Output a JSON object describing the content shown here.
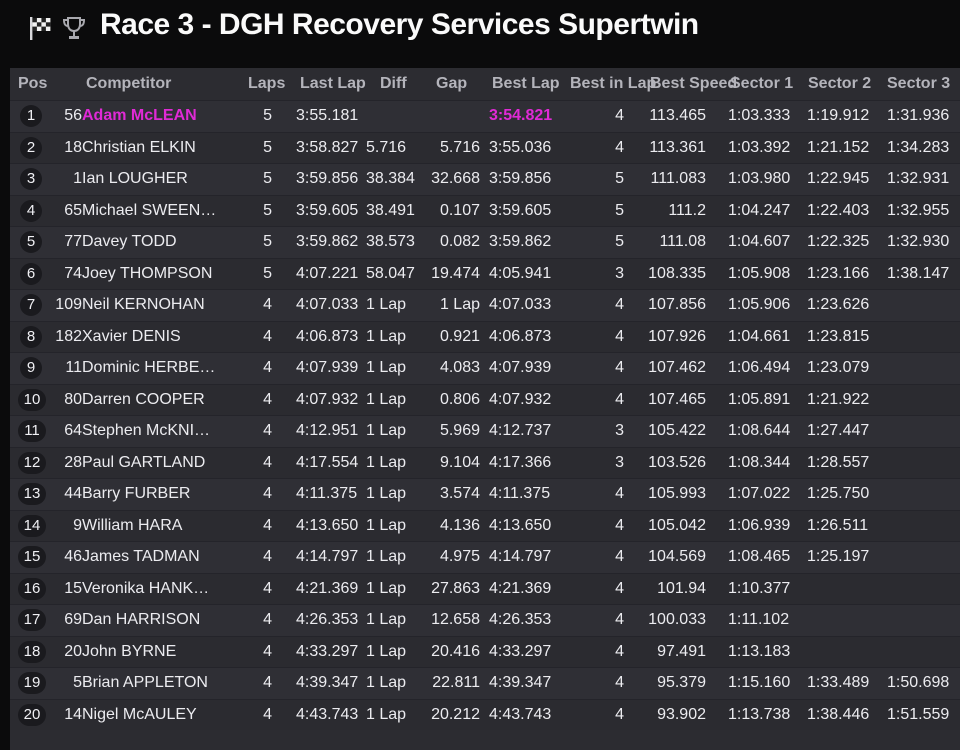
{
  "title": "Race 3 - DGH Recovery Services Supertwin",
  "icons": {
    "flag": "checkered-flag-icon",
    "trophy": "trophy-icon"
  },
  "colors": {
    "highlight": "#e02ad6",
    "background": "#0b0b0c",
    "panel": "#2c2c31"
  },
  "headers": {
    "pos": "Pos",
    "competitor": "Competitor",
    "laps": "Laps",
    "last_lap": "Last Lap",
    "diff": "Diff",
    "gap": "Gap",
    "best_lap": "Best Lap",
    "best_in_lap": "Best in Lap",
    "best_speed": "Best Speed",
    "sector1": "Sector 1",
    "sector2": "Sector 2",
    "sector3": "Sector 3"
  },
  "rows": [
    {
      "pos": "1",
      "num": "56",
      "name": "Adam McLEAN",
      "laps": "5",
      "last": "3:55.181",
      "diff": "",
      "gap": "",
      "best": "3:54.821",
      "bil": "4",
      "speed": "113.465",
      "s1": "1:03.333",
      "s2": "1:19.912",
      "s3": "1:31.936"
    },
    {
      "pos": "2",
      "num": "18",
      "name": "Christian ELKIN",
      "laps": "5",
      "last": "3:58.827",
      "diff": "5.716",
      "gap": "5.716",
      "best": "3:55.036",
      "bil": "4",
      "speed": "113.361",
      "s1": "1:03.392",
      "s2": "1:21.152",
      "s3": "1:34.283"
    },
    {
      "pos": "3",
      "num": "1",
      "name": "Ian LOUGHER",
      "laps": "5",
      "last": "3:59.856",
      "diff": "38.384",
      "gap": "32.668",
      "best": "3:59.856",
      "bil": "5",
      "speed": "111.083",
      "s1": "1:03.980",
      "s2": "1:22.945",
      "s3": "1:32.931"
    },
    {
      "pos": "4",
      "num": "65",
      "name": "Michael SWEEN…",
      "laps": "5",
      "last": "3:59.605",
      "diff": "38.491",
      "gap": "0.107",
      "best": "3:59.605",
      "bil": "5",
      "speed": "111.2",
      "s1": "1:04.247",
      "s2": "1:22.403",
      "s3": "1:32.955"
    },
    {
      "pos": "5",
      "num": "77",
      "name": "Davey TODD",
      "laps": "5",
      "last": "3:59.862",
      "diff": "38.573",
      "gap": "0.082",
      "best": "3:59.862",
      "bil": "5",
      "speed": "111.08",
      "s1": "1:04.607",
      "s2": "1:22.325",
      "s3": "1:32.930"
    },
    {
      "pos": "6",
      "num": "74",
      "name": "Joey THOMPSON",
      "laps": "5",
      "last": "4:07.221",
      "diff": "58.047",
      "gap": "19.474",
      "best": "4:05.941",
      "bil": "3",
      "speed": "108.335",
      "s1": "1:05.908",
      "s2": "1:23.166",
      "s3": "1:38.147"
    },
    {
      "pos": "7",
      "num": "109",
      "name": "Neil KERNOHAN",
      "laps": "4",
      "last": "4:07.033",
      "diff": "1 Lap",
      "gap": "1 Lap",
      "best": "4:07.033",
      "bil": "4",
      "speed": "107.856",
      "s1": "1:05.906",
      "s2": "1:23.626",
      "s3": ""
    },
    {
      "pos": "8",
      "num": "182",
      "name": "Xavier DENIS",
      "laps": "4",
      "last": "4:06.873",
      "diff": "1 Lap",
      "gap": "0.921",
      "best": "4:06.873",
      "bil": "4",
      "speed": "107.926",
      "s1": "1:04.661",
      "s2": "1:23.815",
      "s3": ""
    },
    {
      "pos": "9",
      "num": "11",
      "name": "Dominic HERBE…",
      "laps": "4",
      "last": "4:07.939",
      "diff": "1 Lap",
      "gap": "4.083",
      "best": "4:07.939",
      "bil": "4",
      "speed": "107.462",
      "s1": "1:06.494",
      "s2": "1:23.079",
      "s3": ""
    },
    {
      "pos": "10",
      "num": "80",
      "name": "Darren COOPER",
      "laps": "4",
      "last": "4:07.932",
      "diff": "1 Lap",
      "gap": "0.806",
      "best": "4:07.932",
      "bil": "4",
      "speed": "107.465",
      "s1": "1:05.891",
      "s2": "1:21.922",
      "s3": ""
    },
    {
      "pos": "11",
      "num": "64",
      "name": "Stephen McKNI…",
      "laps": "4",
      "last": "4:12.951",
      "diff": "1 Lap",
      "gap": "5.969",
      "best": "4:12.737",
      "bil": "3",
      "speed": "105.422",
      "s1": "1:08.644",
      "s2": "1:27.447",
      "s3": ""
    },
    {
      "pos": "12",
      "num": "28",
      "name": "Paul GARTLAND",
      "laps": "4",
      "last": "4:17.554",
      "diff": "1 Lap",
      "gap": "9.104",
      "best": "4:17.366",
      "bil": "3",
      "speed": "103.526",
      "s1": "1:08.344",
      "s2": "1:28.557",
      "s3": ""
    },
    {
      "pos": "13",
      "num": "44",
      "name": "Barry FURBER",
      "laps": "4",
      "last": "4:11.375",
      "diff": "1 Lap",
      "gap": "3.574",
      "best": "4:11.375",
      "bil": "4",
      "speed": "105.993",
      "s1": "1:07.022",
      "s2": "1:25.750",
      "s3": ""
    },
    {
      "pos": "14",
      "num": "9",
      "name": "William HARA",
      "laps": "4",
      "last": "4:13.650",
      "diff": "1 Lap",
      "gap": "4.136",
      "best": "4:13.650",
      "bil": "4",
      "speed": "105.042",
      "s1": "1:06.939",
      "s2": "1:26.511",
      "s3": ""
    },
    {
      "pos": "15",
      "num": "46",
      "name": "James TADMAN",
      "laps": "4",
      "last": "4:14.797",
      "diff": "1 Lap",
      "gap": "4.975",
      "best": "4:14.797",
      "bil": "4",
      "speed": "104.569",
      "s1": "1:08.465",
      "s2": "1:25.197",
      "s3": ""
    },
    {
      "pos": "16",
      "num": "15",
      "name": "Veronika HANK…",
      "laps": "4",
      "last": "4:21.369",
      "diff": "1 Lap",
      "gap": "27.863",
      "best": "4:21.369",
      "bil": "4",
      "speed": "101.94",
      "s1": "1:10.377",
      "s2": "",
      "s3": ""
    },
    {
      "pos": "17",
      "num": "69",
      "name": "Dan HARRISON",
      "laps": "4",
      "last": "4:26.353",
      "diff": "1 Lap",
      "gap": "12.658",
      "best": "4:26.353",
      "bil": "4",
      "speed": "100.033",
      "s1": "1:11.102",
      "s2": "",
      "s3": ""
    },
    {
      "pos": "18",
      "num": "20",
      "name": "John BYRNE",
      "laps": "4",
      "last": "4:33.297",
      "diff": "1 Lap",
      "gap": "20.416",
      "best": "4:33.297",
      "bil": "4",
      "speed": "97.491",
      "s1": "1:13.183",
      "s2": "",
      "s3": ""
    },
    {
      "pos": "19",
      "num": "5",
      "name": "Brian APPLETON",
      "laps": "4",
      "last": "4:39.347",
      "diff": "1 Lap",
      "gap": "22.811",
      "best": "4:39.347",
      "bil": "4",
      "speed": "95.379",
      "s1": "1:15.160",
      "s2": "1:33.489",
      "s3": "1:50.698"
    },
    {
      "pos": "20",
      "num": "14",
      "name": "Nigel McAULEY",
      "laps": "4",
      "last": "4:43.743",
      "diff": "1 Lap",
      "gap": "20.212",
      "best": "4:43.743",
      "bil": "4",
      "speed": "93.902",
      "s1": "1:13.738",
      "s2": "1:38.446",
      "s3": "1:51.559"
    }
  ]
}
